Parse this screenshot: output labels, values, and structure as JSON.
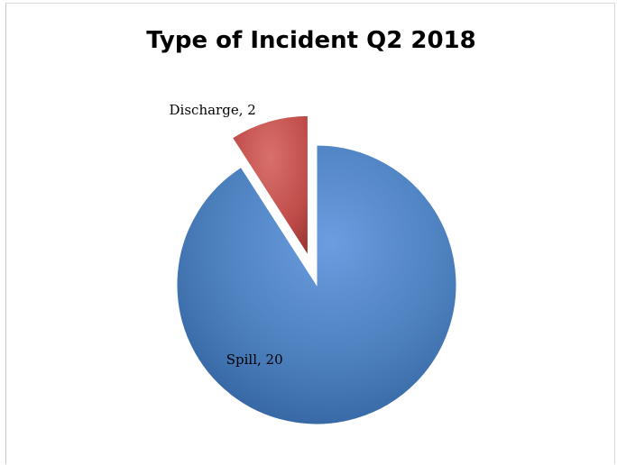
{
  "chart_data": {
    "type": "pie",
    "title": "Type of Incident Q2 2018",
    "slices": [
      {
        "label": "Spill",
        "value": 20,
        "color": "#4A7EBB",
        "exploded": false
      },
      {
        "label": "Discharge",
        "value": 2,
        "color": "#BE4B48",
        "exploded": true
      }
    ],
    "data_labels": [
      "Spill, 20",
      "Discharge, 2"
    ],
    "legend": "none",
    "style": "3d-shaded"
  }
}
